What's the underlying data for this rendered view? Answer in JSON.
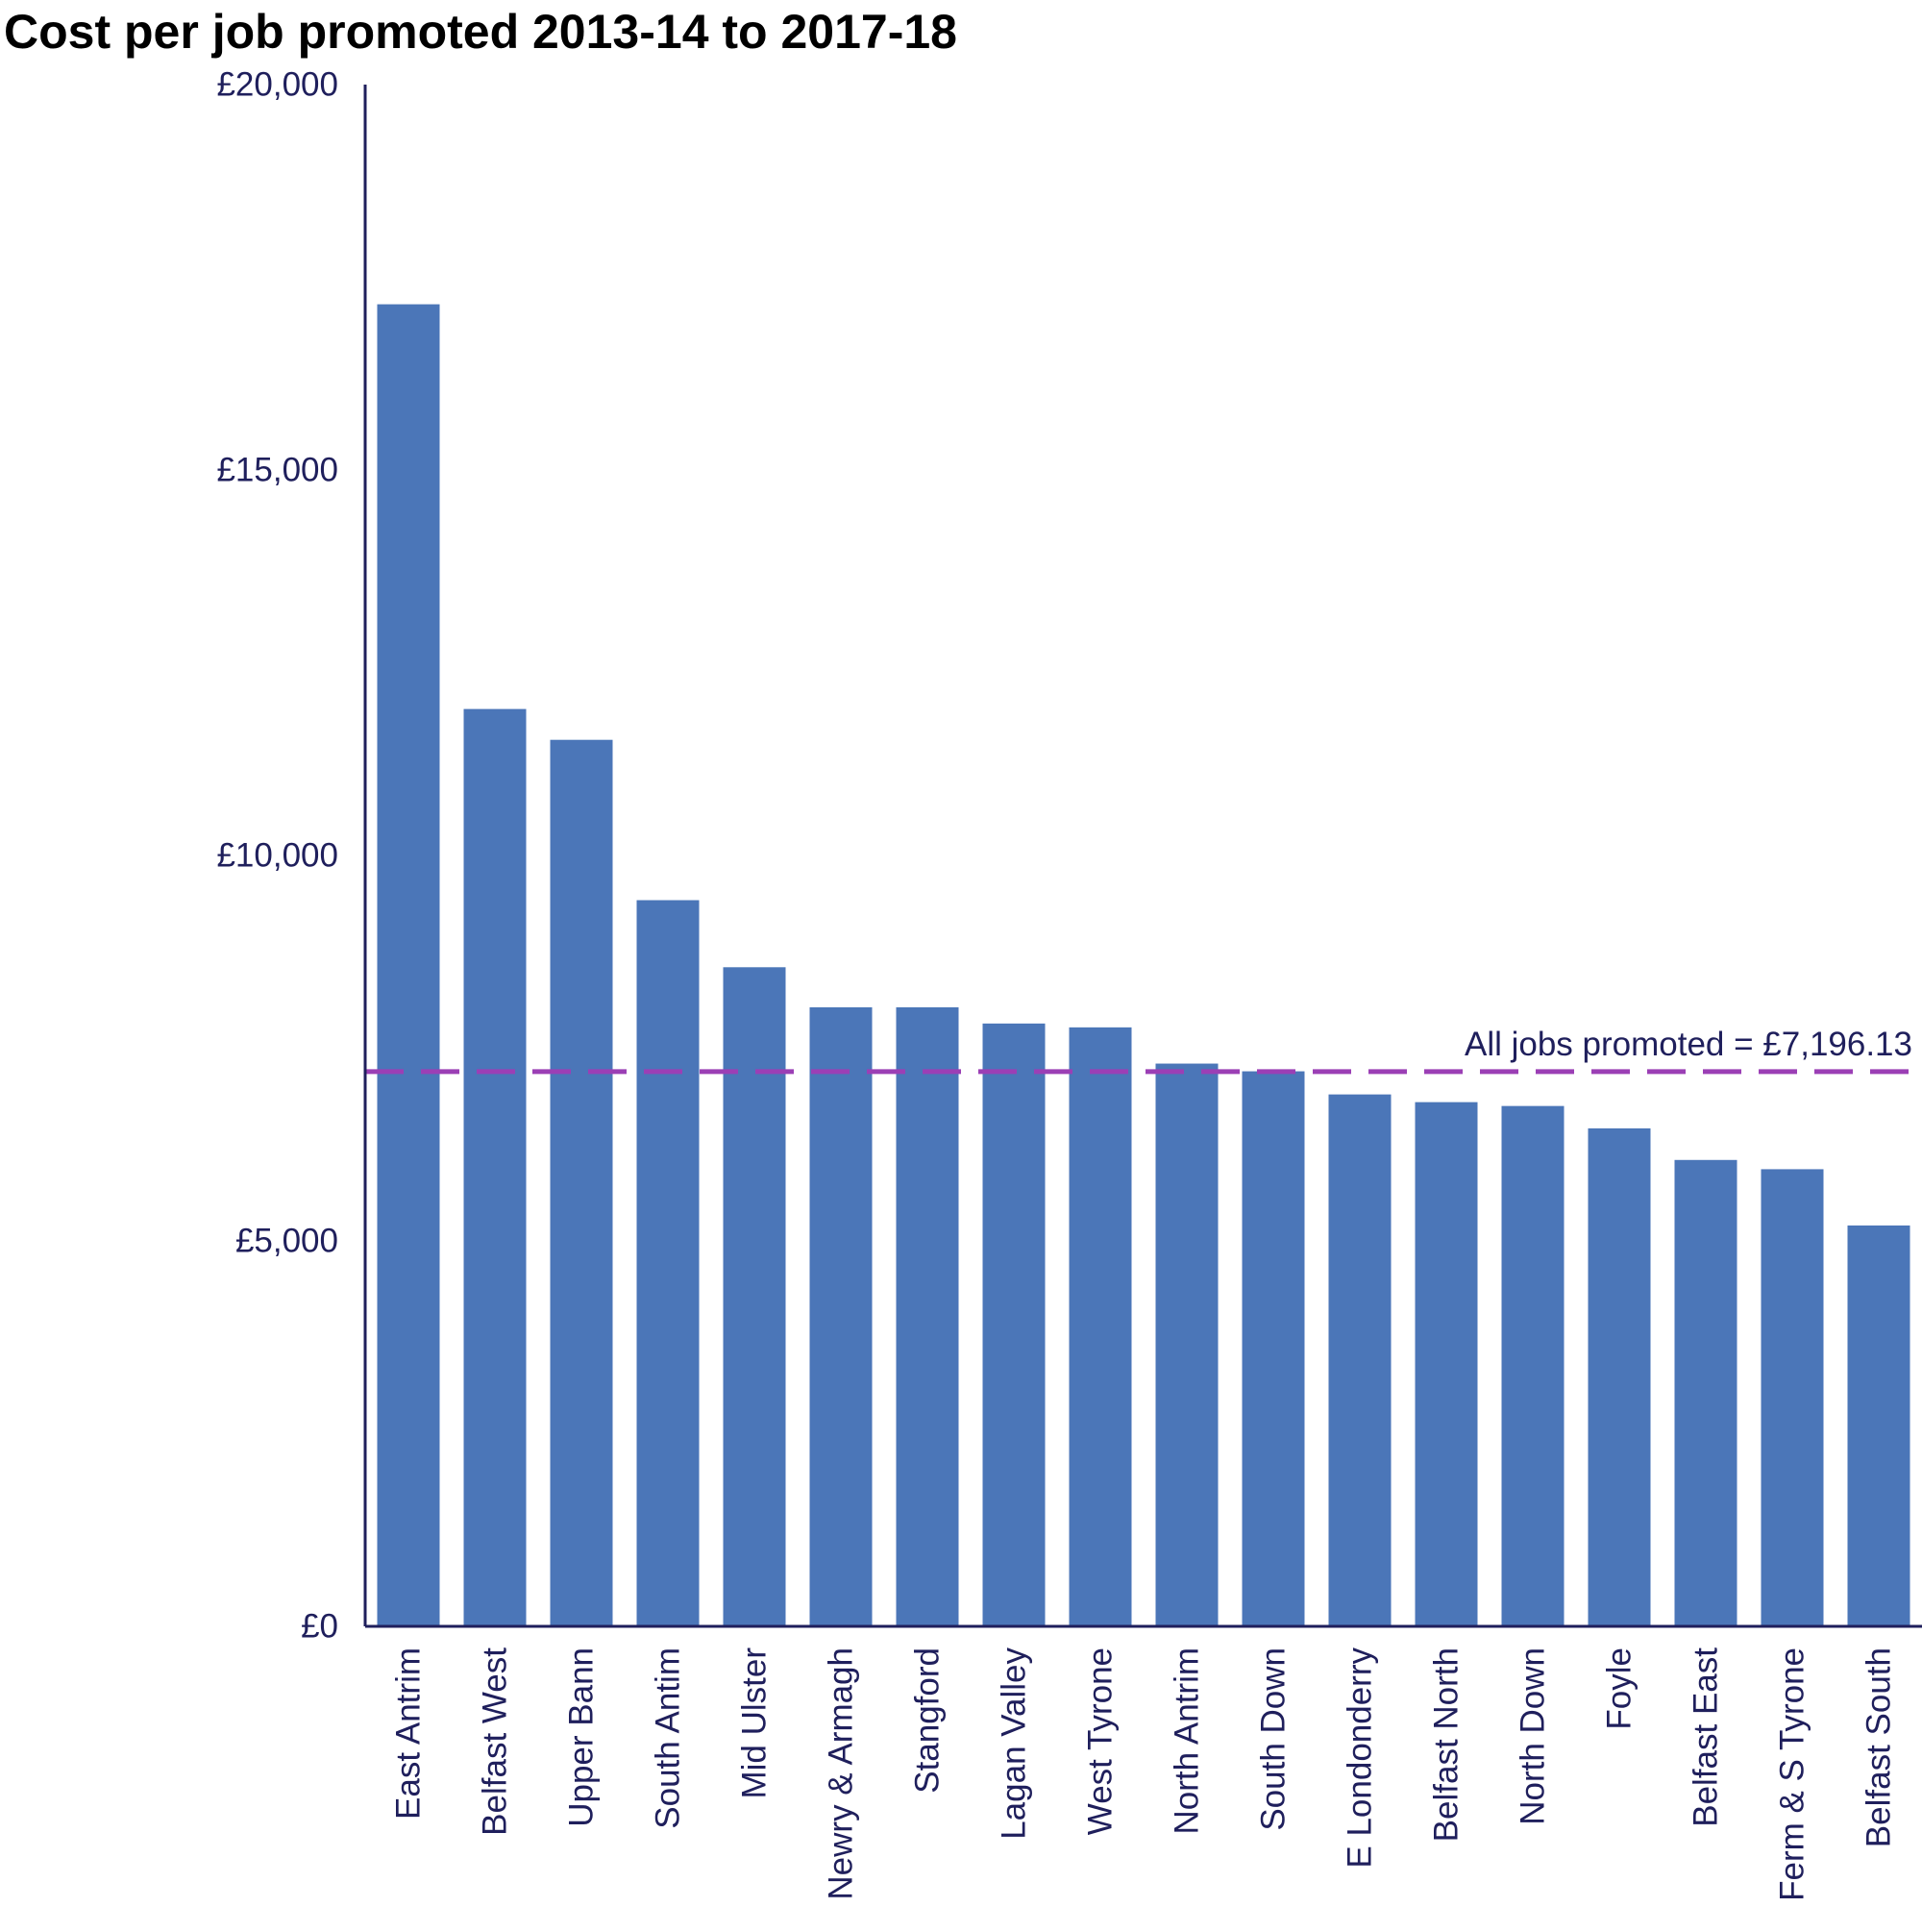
{
  "chart_data": {
    "type": "bar",
    "title": "Cost per job promoted 2013-14 to 2017-18",
    "xlabel": "",
    "ylabel": "",
    "ylim": [
      0,
      20000
    ],
    "yticks": [
      {
        "value": 0,
        "label": "£0"
      },
      {
        "value": 5000,
        "label": "£5,000"
      },
      {
        "value": 10000,
        "label": "£10,000"
      },
      {
        "value": 15000,
        "label": "£15,000"
      },
      {
        "value": 20000,
        "label": "£20,000"
      }
    ],
    "categories": [
      "East Antrim",
      "Belfast West",
      "Upper Bann",
      "South Antim",
      "Mid Ulster",
      "Newry & Armagh",
      "Stangford",
      "Lagan Valley",
      "West Tyrone",
      "North Antrim",
      "South Down",
      "E Londonderry",
      "Belfast North",
      "North Down",
      "Foyle",
      "Belfast East",
      "Ferm & S Tyrone",
      "Belfast South"
    ],
    "values": [
      17150,
      11900,
      11500,
      9420,
      8550,
      8030,
      8030,
      7820,
      7770,
      7300,
      7200,
      6900,
      6800,
      6750,
      6460,
      6050,
      5930,
      5200
    ],
    "bar_color": "#4b76b8",
    "grid": false,
    "reference_line": {
      "value": 7196.13,
      "label": "All jobs promoted = £7,196.13",
      "color": "#9b3fb5",
      "style": "dashed"
    },
    "axis_color": "#1f1f5c"
  }
}
